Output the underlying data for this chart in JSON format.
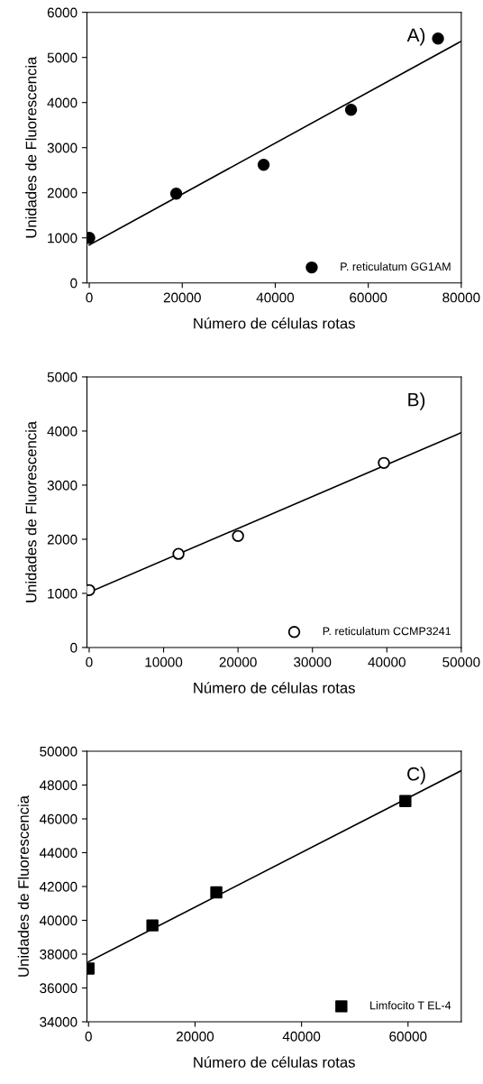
{
  "chart_data": [
    {
      "type": "scatter",
      "xlabel": "Número de células rotas",
      "ylabel": "Unidades de Fluorescencia",
      "annotations": [
        "A)"
      ],
      "xlim": [
        -500,
        80000
      ],
      "xticks": [
        0,
        20000,
        40000,
        60000,
        80000
      ],
      "ylim": [
        0,
        6000
      ],
      "yticks": [
        0,
        1000,
        2000,
        3000,
        4000,
        5000,
        6000
      ],
      "grid": false,
      "legend": "bottom right",
      "marker": "circle",
      "series": [
        {
          "name": "P. reticulatum GG1AM",
          "color": "#000000",
          "x": [
            0,
            18700,
            37500,
            56300,
            75000
          ],
          "values": [
            1000,
            1980,
            2620,
            3840,
            5420
          ]
        },
        {
          "type": "line",
          "marker": "none",
          "color": "#000000",
          "x": [
            0,
            80000
          ],
          "values": [
            840,
            5360
          ]
        }
      ]
    },
    {
      "type": "scatter",
      "xlabel": "Número de células rotas",
      "ylabel": "Unidades de Fluorescencia",
      "annotations": [
        "B)"
      ],
      "xlim": [
        -300,
        50000
      ],
      "xticks": [
        0,
        10000,
        20000,
        30000,
        40000,
        50000
      ],
      "ylim": [
        0,
        5000
      ],
      "yticks": [
        0,
        1000,
        2000,
        3000,
        4000,
        5000
      ],
      "grid": false,
      "legend": "bottom right",
      "marker": "circle",
      "series": [
        {
          "name": "P. reticulatum CCMP3241",
          "color": "#ffffff",
          "x": [
            0,
            12000,
            20000,
            39600
          ],
          "values": [
            1060,
            1730,
            2060,
            3410
          ]
        },
        {
          "type": "line",
          "marker": "none",
          "color": "#000000",
          "x": [
            0,
            50000
          ],
          "values": [
            1020,
            3970
          ]
        }
      ]
    },
    {
      "type": "scatter",
      "xlabel": "Número de células rotas",
      "ylabel": "Unidades de Fluorescencia",
      "annotations": [
        "C)"
      ],
      "xlim": [
        -300,
        70000
      ],
      "xticks": [
        0,
        20000,
        40000,
        60000
      ],
      "ylim": [
        34000,
        50000
      ],
      "yticks": [
        34000,
        36000,
        38000,
        40000,
        42000,
        44000,
        46000,
        48000,
        50000
      ],
      "grid": false,
      "legend": "bottom right",
      "marker": "square",
      "series": [
        {
          "name": "Limfocito T EL-4",
          "color": "#000000",
          "x": [
            0,
            12000,
            24000,
            59500
          ],
          "values": [
            37150,
            39700,
            41650,
            47050
          ]
        },
        {
          "type": "line",
          "marker": "none",
          "color": "#000000",
          "x": [
            0,
            70000
          ],
          "values": [
            37550,
            48850
          ]
        }
      ]
    }
  ]
}
